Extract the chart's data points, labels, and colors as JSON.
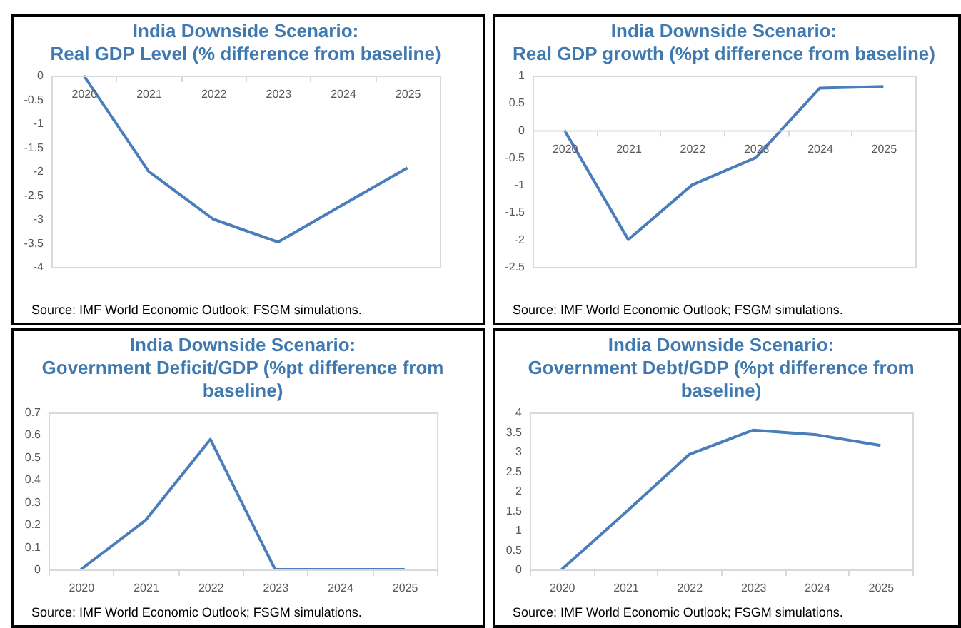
{
  "chart_data": [
    {
      "type": "line",
      "title": "India Downside Scenario: Real GDP Level (% difference from baseline)",
      "categories": [
        "2020",
        "2021",
        "2022",
        "2023",
        "2024",
        "2025"
      ],
      "series": [
        {
          "color": "#4a7ebb",
          "values": [
            0,
            -2,
            -3,
            -3.48,
            -2.7,
            -1.93
          ]
        }
      ],
      "ylim": [
        -4,
        0
      ],
      "yticks": [
        -4,
        -3.5,
        -3,
        -2.5,
        -2,
        -1.5,
        -1,
        -0.5,
        0
      ],
      "grid": false,
      "annotations": [
        "Source: IMF World Economic Outlook; FSGM simulations."
      ]
    },
    {
      "type": "line",
      "title": "India Downside Scenario: Real GDP growth (%pt difference from baseline)",
      "categories": [
        "2020",
        "2021",
        "2022",
        "2023",
        "2024",
        "2025"
      ],
      "series": [
        {
          "color": "#4a7ebb",
          "values": [
            0,
            -2,
            -1,
            -0.5,
            0.77,
            0.8
          ]
        }
      ],
      "ylim": [
        -2.5,
        1
      ],
      "yticks": [
        -2.5,
        -2,
        -1.5,
        -1,
        -0.5,
        0,
        0.5,
        1
      ],
      "grid": false,
      "annotations": [
        "Source: IMF World Economic Outlook; FSGM simulations."
      ]
    },
    {
      "type": "line",
      "title": "India Downside Scenario: Government Deficit/GDP (%pt difference from baseline)",
      "categories": [
        "2020",
        "2021",
        "2022",
        "2023",
        "2024",
        "2025"
      ],
      "series": [
        {
          "color": "#4a7ebb",
          "values": [
            0,
            0.22,
            0.58,
            0,
            0,
            0
          ]
        }
      ],
      "ylim": [
        0,
        0.7
      ],
      "yticks": [
        0,
        0.1,
        0.2,
        0.3,
        0.4,
        0.5,
        0.6,
        0.7
      ],
      "grid": false,
      "annotations": [
        "Source: IMF World Economic Outlook; FSGM simulations."
      ]
    },
    {
      "type": "line",
      "title": "India Downside Scenario: Government Debt/GDP (%pt difference from baseline)",
      "categories": [
        "2020",
        "2021",
        "2022",
        "2023",
        "2024",
        "2025"
      ],
      "series": [
        {
          "color": "#4a7ebb",
          "values": [
            0,
            1.45,
            2.93,
            3.55,
            3.43,
            3.16
          ]
        }
      ],
      "ylim": [
        0,
        4
      ],
      "yticks": [
        0,
        0.5,
        1,
        1.5,
        2,
        2.5,
        3,
        3.5,
        4
      ],
      "grid": false,
      "annotations": [
        "Source: IMF World Economic Outlook; FSGM simulations."
      ]
    }
  ]
}
